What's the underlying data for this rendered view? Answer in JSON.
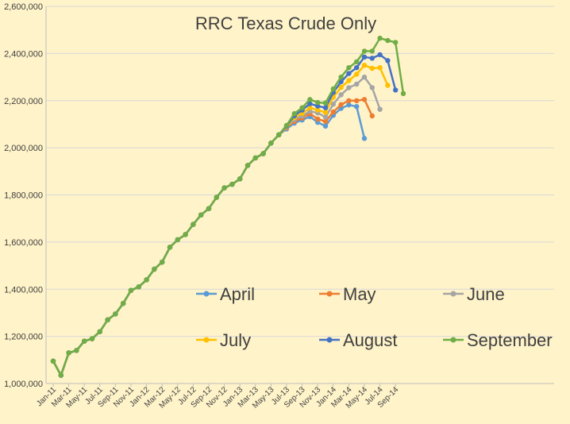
{
  "chart_data": {
    "type": "line",
    "title": "RRC Texas Crude Only",
    "xlabel": "",
    "ylabel": "",
    "ylim": [
      1000000,
      2600000
    ],
    "y_ticks": [
      1000000,
      1200000,
      1400000,
      1600000,
      1800000,
      2000000,
      2200000,
      2400000,
      2600000
    ],
    "y_tick_labels": [
      "1,000,000",
      "1,200,000",
      "1,400,000",
      "1,600,000",
      "1,800,000",
      "2,000,000",
      "2,200,000",
      "2,400,000",
      "2,600,000"
    ],
    "x_tick_labels": [
      "Jan-11",
      "Mar-11",
      "May-11",
      "Jul-11",
      "Sep-11",
      "Nov-11",
      "Jan-12",
      "Mar-12",
      "May-12",
      "Jul-12",
      "Sep-12",
      "Nov-12",
      "Jan-13",
      "Mar-13",
      "May-13",
      "Jul-13",
      "Sep-13",
      "Nov-13",
      "Jan-14",
      "Mar-14",
      "May-14",
      "Jul-14",
      "Sep-14"
    ],
    "grid": "horizontal",
    "legend_position": "inside-bottom-right",
    "base": [
      1095000,
      1035000,
      1130000,
      1140000,
      1180000,
      1190000,
      1220000,
      1270000,
      1295000,
      1340000,
      1395000,
      1410000,
      1440000,
      1485000,
      1515000,
      1578000,
      1610000,
      1632000,
      1675000,
      1715000,
      1742000,
      1790000,
      1830000,
      1845000,
      1868000,
      1925000,
      1957000,
      1975000,
      2020000,
      2055000
    ],
    "series": [
      {
        "name": "April",
        "color": "#5b9bd5",
        "values": [
          2080000,
          2105000,
          2118000,
          2132000,
          2108000,
          2092000,
          2138000,
          2167000,
          2182000,
          2175000,
          2040000
        ]
      },
      {
        "name": "May",
        "color": "#ed7d31",
        "values": [
          2085000,
          2112000,
          2126000,
          2145000,
          2122000,
          2112000,
          2152000,
          2183000,
          2200000,
          2200000,
          2205000,
          2135000
        ]
      },
      {
        "name": "June",
        "color": "#a5a5a5",
        "values": [
          2088000,
          2120000,
          2135000,
          2155000,
          2148000,
          2130000,
          2185000,
          2225000,
          2255000,
          2270000,
          2300000,
          2255000,
          2163000
        ]
      },
      {
        "name": "July",
        "color": "#ffc000",
        "values": [
          2090000,
          2128000,
          2146000,
          2170000,
          2160000,
          2150000,
          2215000,
          2256000,
          2285000,
          2312000,
          2350000,
          2337000,
          2340000,
          2265000
        ]
      },
      {
        "name": "August",
        "color": "#4472c4",
        "values": [
          2092000,
          2136000,
          2160000,
          2187000,
          2177000,
          2170000,
          2235000,
          2280000,
          2315000,
          2340000,
          2385000,
          2380000,
          2395000,
          2370000,
          2245000
        ]
      },
      {
        "name": "September",
        "color": "#70ad47",
        "values": [
          2095000,
          2145000,
          2170000,
          2205000,
          2192000,
          2190000,
          2250000,
          2300000,
          2340000,
          2365000,
          2410000,
          2410000,
          2465000,
          2455000,
          2447000,
          2230000
        ]
      }
    ]
  }
}
